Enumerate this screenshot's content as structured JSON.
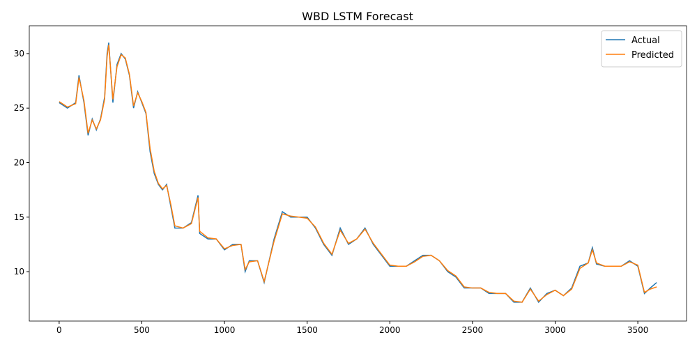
{
  "chart_data": {
    "type": "line",
    "title": "WBD LSTM Forecast",
    "x": [
      0,
      50,
      100,
      120,
      150,
      175,
      200,
      225,
      250,
      275,
      290,
      300,
      325,
      350,
      375,
      400,
      425,
      450,
      475,
      500,
      525,
      550,
      575,
      600,
      625,
      650,
      675,
      700,
      750,
      800,
      840,
      850,
      900,
      950,
      1000,
      1050,
      1100,
      1125,
      1150,
      1200,
      1240,
      1300,
      1350,
      1400,
      1450,
      1500,
      1550,
      1600,
      1650,
      1700,
      1750,
      1800,
      1850,
      1900,
      1950,
      2000,
      2050,
      2100,
      2150,
      2200,
      2250,
      2300,
      2350,
      2400,
      2450,
      2500,
      2550,
      2600,
      2650,
      2700,
      2750,
      2800,
      2850,
      2900,
      2950,
      3000,
      3050,
      3100,
      3150,
      3200,
      3225,
      3250,
      3300,
      3350,
      3400,
      3450,
      3500,
      3540,
      3575,
      3614
    ],
    "series": [
      {
        "name": "Actual",
        "color": "#1f77b4",
        "values": [
          25.5,
          25,
          25.5,
          28,
          25.5,
          22.5,
          24,
          23,
          24,
          26,
          30,
          31,
          25.5,
          29,
          30,
          29.5,
          28,
          25,
          26.5,
          25.5,
          24.5,
          21,
          19,
          18,
          17.5,
          18,
          16,
          14,
          14,
          14.5,
          17,
          13.5,
          13,
          13,
          12,
          12.5,
          12.5,
          10,
          11,
          11,
          9,
          13,
          15.5,
          15,
          15,
          15,
          14,
          12.5,
          11.5,
          14,
          12.5,
          13,
          14,
          12.5,
          11.5,
          10.5,
          10.5,
          10.5,
          11,
          11.5,
          11.5,
          11,
          10,
          9.5,
          8.5,
          8.5,
          8.5,
          8,
          8,
          8,
          7.2,
          7.2,
          8.5,
          7.2,
          8,
          8.3,
          7.8,
          8.5,
          10.5,
          10.8,
          12.2,
          10.7,
          10.5,
          10.5,
          10.5,
          11,
          10.5,
          8,
          8.5,
          9
        ]
      },
      {
        "name": "Predicted",
        "color": "#ff7f0e",
        "values": [
          25.6,
          25.1,
          25.4,
          27.8,
          25.7,
          22.7,
          23.9,
          23.1,
          23.9,
          25.8,
          29.7,
          30.8,
          25.8,
          28.8,
          29.9,
          29.6,
          28.1,
          25.2,
          26.4,
          25.6,
          24.6,
          21.3,
          19.2,
          18.1,
          17.6,
          17.9,
          16.2,
          14.2,
          14,
          14.4,
          16.8,
          13.7,
          13.1,
          13,
          12.1,
          12.4,
          12.5,
          10.2,
          10.9,
          11,
          9.1,
          12.8,
          15.3,
          15.1,
          15,
          14.9,
          14.1,
          12.6,
          11.6,
          13.8,
          12.6,
          13,
          13.9,
          12.6,
          11.6,
          10.6,
          10.5,
          10.5,
          10.9,
          11.4,
          11.5,
          11,
          10.1,
          9.6,
          8.6,
          8.5,
          8.5,
          8.1,
          8,
          8,
          7.3,
          7.2,
          8.4,
          7.3,
          7.9,
          8.3,
          7.8,
          8.4,
          10.3,
          10.8,
          12,
          10.8,
          10.5,
          10.5,
          10.5,
          10.9,
          10.6,
          8.1,
          8.4,
          8.6
        ]
      }
    ],
    "xlim": [
      -180.7,
      3794.7
    ],
    "ylim": [
      5.47,
      32.55
    ],
    "xticks": [
      0,
      500,
      1000,
      1500,
      2000,
      2500,
      3000,
      3500
    ],
    "yticks": [
      10,
      15,
      20,
      25,
      30
    ],
    "legend": "upper right"
  }
}
